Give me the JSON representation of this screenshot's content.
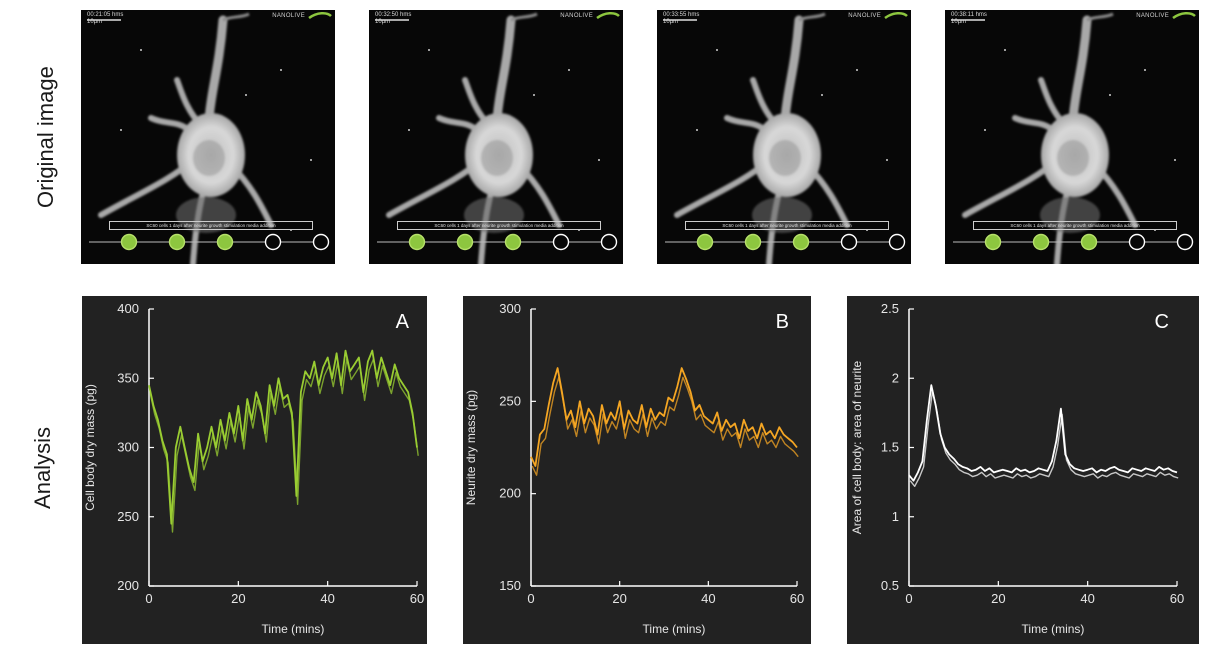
{
  "row_labels": {
    "original": "Original image",
    "analysis": "Analysis"
  },
  "micrographs": [
    {
      "timestamp": "00:21:05 hms",
      "scale": "10µm",
      "brand": "NANOLIVE",
      "caption": "SC60 cells 1 days after neurite growth stimulation media addition",
      "steps_done": 3,
      "steps_total": 5
    },
    {
      "timestamp": "00:32:50 hms",
      "scale": "10µm",
      "brand": "NANOLIVE",
      "caption": "SC60 cells 1 days after neurite growth stimulation media addition",
      "steps_done": 3,
      "steps_total": 5
    },
    {
      "timestamp": "00:33:55 hms",
      "scale": "10µm",
      "brand": "NANOLIVE",
      "caption": "SC60 cells 1 days after neurite growth stimulation media addition",
      "steps_done": 3,
      "steps_total": 5
    },
    {
      "timestamp": "00:38:11 hms",
      "scale": "10µm",
      "brand": "NANOLIVE",
      "caption": "SC60 cells 1 days after neurite growth stimulation media addition",
      "steps_done": 3,
      "steps_total": 5
    }
  ],
  "colors": {
    "green": "#9acd32",
    "orange": "#f5a623",
    "white": "#ffffff",
    "panel_bg": "#222222",
    "step_fill": "#8dc63f"
  },
  "chart_data": [
    {
      "type": "line",
      "panel_label": "A",
      "xlabel": "Time (mins)",
      "ylabel": "Cell body dry mass (pg)",
      "xlim": [
        0,
        60
      ],
      "ylim": [
        200,
        400
      ],
      "xticks": [
        0,
        20,
        40,
        60
      ],
      "yticks": [
        200,
        250,
        300,
        350,
        400
      ],
      "color": "#9acd32",
      "band": 6,
      "series": [
        {
          "x": [
            0,
            1,
            2,
            3,
            4,
            5,
            6,
            7,
            8,
            9,
            10,
            11,
            12,
            13,
            14,
            15,
            16,
            17,
            18,
            19,
            20,
            21,
            22,
            23,
            24,
            25,
            26,
            27,
            28,
            29,
            30,
            31,
            32,
            33,
            34,
            35,
            36,
            37,
            38,
            39,
            40,
            41,
            42,
            43,
            44,
            45,
            46,
            47,
            48,
            49,
            50,
            51,
            52,
            53,
            54,
            55,
            56,
            57,
            58,
            59,
            60
          ],
          "y": [
            345,
            330,
            320,
            305,
            295,
            245,
            300,
            315,
            300,
            285,
            275,
            310,
            290,
            300,
            315,
            300,
            320,
            305,
            325,
            310,
            330,
            305,
            335,
            320,
            340,
            330,
            310,
            345,
            330,
            350,
            335,
            338,
            325,
            265,
            340,
            355,
            350,
            362,
            345,
            358,
            365,
            350,
            368,
            345,
            370,
            355,
            360,
            365,
            340,
            362,
            370,
            350,
            365,
            355,
            345,
            360,
            350,
            345,
            340,
            325,
            300
          ]
        }
      ]
    },
    {
      "type": "line",
      "panel_label": "B",
      "xlabel": "Time (mins)",
      "ylabel": "Neurite dry mass (pg)",
      "xlim": [
        0,
        60
      ],
      "ylim": [
        150,
        300
      ],
      "xticks": [
        0,
        20,
        40,
        60
      ],
      "yticks": [
        150,
        200,
        250,
        300
      ],
      "color": "#f5a623",
      "band": 5,
      "series": [
        {
          "x": [
            0,
            1,
            2,
            3,
            4,
            5,
            6,
            7,
            8,
            9,
            10,
            11,
            12,
            13,
            14,
            15,
            16,
            17,
            18,
            19,
            20,
            21,
            22,
            23,
            24,
            25,
            26,
            27,
            28,
            29,
            30,
            31,
            32,
            33,
            34,
            35,
            36,
            37,
            38,
            39,
            40,
            41,
            42,
            43,
            44,
            45,
            46,
            47,
            48,
            49,
            50,
            51,
            52,
            53,
            54,
            55,
            56,
            57,
            58,
            59,
            60
          ],
          "y": [
            220,
            215,
            232,
            235,
            248,
            260,
            268,
            255,
            240,
            245,
            236,
            250,
            238,
            246,
            242,
            232,
            248,
            238,
            244,
            240,
            250,
            235,
            245,
            240,
            238,
            248,
            236,
            246,
            240,
            244,
            242,
            252,
            250,
            258,
            268,
            262,
            255,
            245,
            248,
            242,
            240,
            238,
            244,
            234,
            240,
            236,
            238,
            230,
            240,
            234,
            236,
            230,
            238,
            232,
            234,
            230,
            236,
            232,
            230,
            228,
            225
          ]
        }
      ]
    },
    {
      "type": "line",
      "panel_label": "C",
      "xlabel": "Time (mins)",
      "ylabel": "Area of cell body: area of neurite",
      "xlim": [
        0,
        60
      ],
      "ylim": [
        0.5,
        2.5
      ],
      "xticks": [
        0,
        20,
        40,
        60
      ],
      "yticks": [
        0.5,
        1,
        1.5,
        2,
        2.5
      ],
      "ytick_labels": [
        "0.5",
        "1",
        "1.5",
        "2",
        "2.5"
      ],
      "color": "#ffffff",
      "band": 0.04,
      "series": [
        {
          "x": [
            0,
            1,
            2,
            3,
            4,
            5,
            6,
            7,
            8,
            9,
            10,
            11,
            12,
            13,
            14,
            15,
            16,
            17,
            18,
            19,
            20,
            21,
            22,
            23,
            24,
            25,
            26,
            27,
            28,
            29,
            30,
            31,
            32,
            33,
            34,
            35,
            36,
            37,
            38,
            39,
            40,
            41,
            42,
            43,
            44,
            45,
            46,
            47,
            48,
            49,
            50,
            51,
            52,
            53,
            54,
            55,
            56,
            57,
            58,
            59,
            60
          ],
          "y": [
            1.3,
            1.26,
            1.32,
            1.4,
            1.7,
            1.95,
            1.8,
            1.6,
            1.5,
            1.45,
            1.42,
            1.38,
            1.36,
            1.35,
            1.33,
            1.34,
            1.36,
            1.33,
            1.35,
            1.32,
            1.33,
            1.34,
            1.33,
            1.32,
            1.35,
            1.33,
            1.34,
            1.32,
            1.33,
            1.35,
            1.34,
            1.33,
            1.4,
            1.55,
            1.78,
            1.45,
            1.38,
            1.35,
            1.34,
            1.33,
            1.34,
            1.35,
            1.32,
            1.34,
            1.33,
            1.35,
            1.36,
            1.34,
            1.33,
            1.32,
            1.35,
            1.34,
            1.33,
            1.35,
            1.34,
            1.33,
            1.36,
            1.34,
            1.35,
            1.33,
            1.32
          ]
        }
      ]
    }
  ]
}
